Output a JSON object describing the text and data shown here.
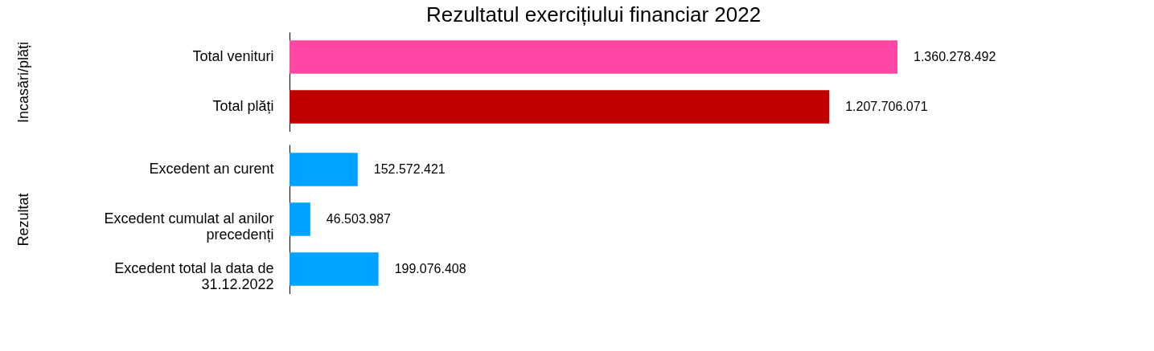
{
  "chart_data": [
    {
      "type": "bar",
      "orientation": "horizontal",
      "title": "Rezultatul exercițiului financiar 2022",
      "ylabel": "Incasări/plăți",
      "categories": [
        "Total venituri",
        "Total plăți"
      ],
      "values": [
        1360278492,
        1207706071
      ],
      "colors": [
        "#ff47a3",
        "#c00000"
      ],
      "value_labels": [
        "1.360.278.492",
        "1.207.706.071"
      ]
    },
    {
      "type": "bar",
      "orientation": "horizontal",
      "ylabel": "Rezultat",
      "categories": [
        "Excedent an curent",
        "Excedent cumulat al anilor precedenți",
        "Excedent total la data de 31.12.2022"
      ],
      "values": [
        152572421,
        46503987,
        199076408
      ],
      "colors": [
        "#00a2ff",
        "#00a2ff",
        "#00a2ff"
      ],
      "value_labels": [
        "152.572.421",
        "46.503.987",
        "199.076.408"
      ]
    }
  ]
}
